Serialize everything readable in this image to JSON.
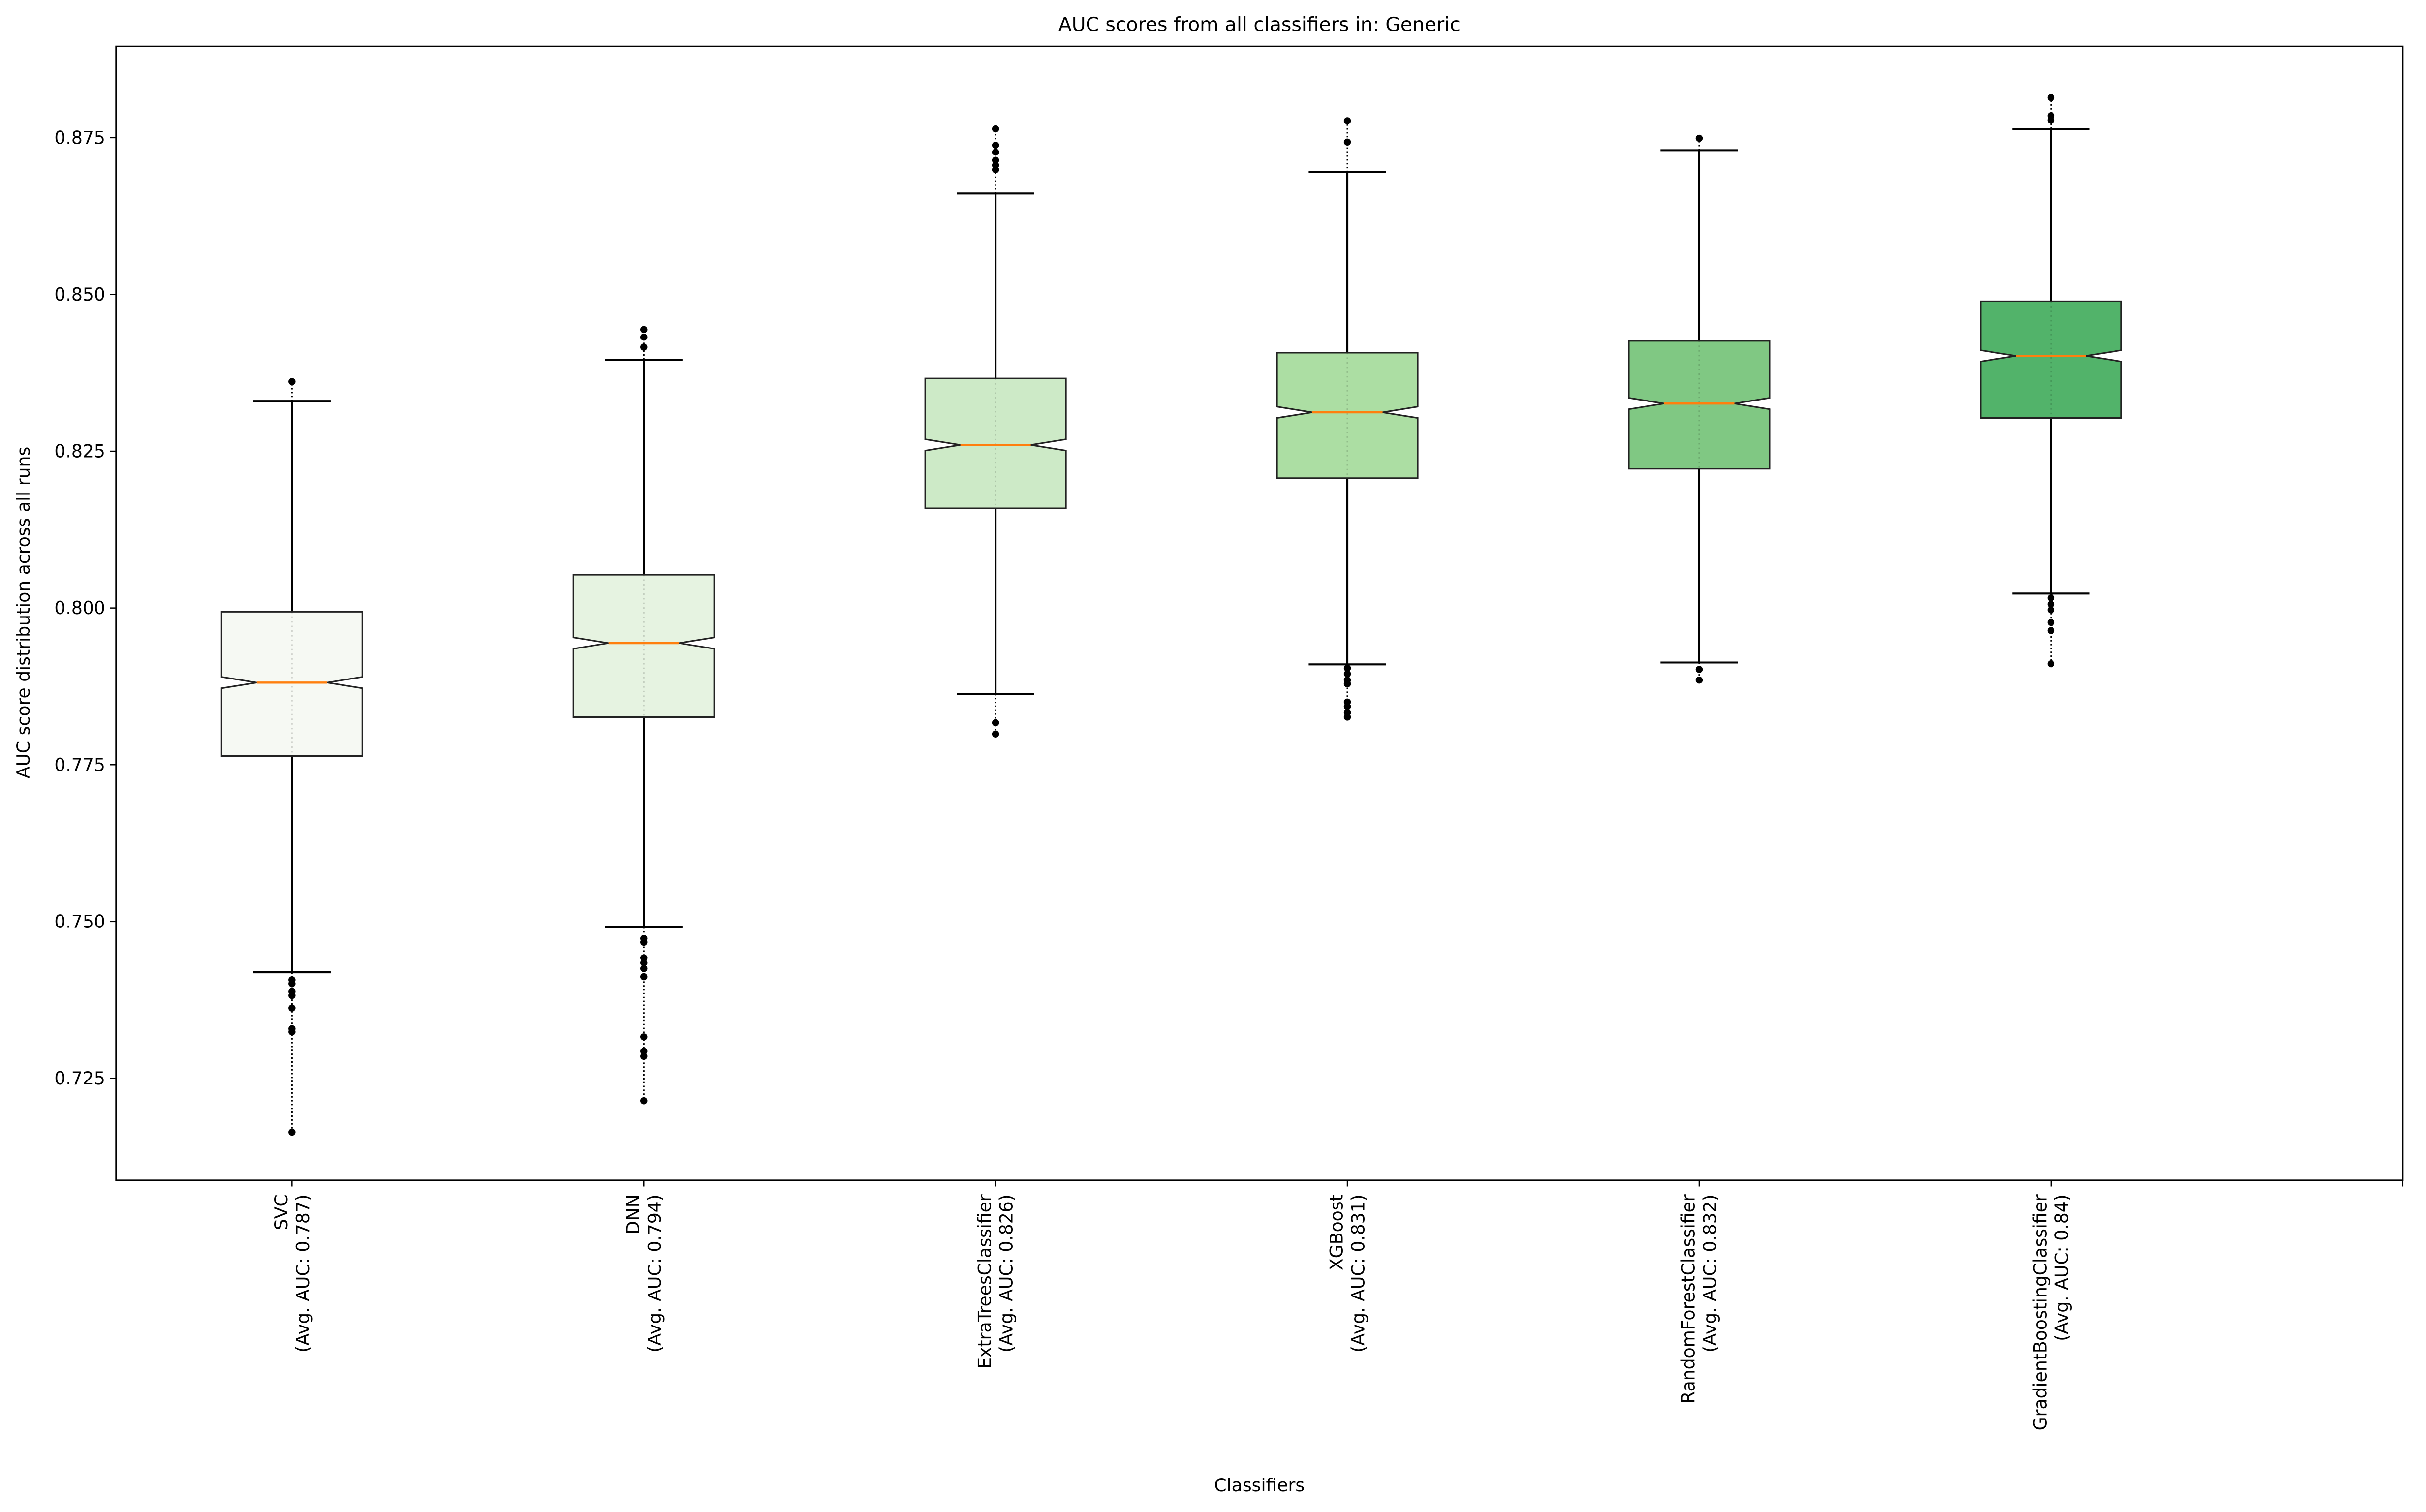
{
  "chart_data": {
    "type": "boxplot",
    "title": "AUC scores from all classifiers in: Generic",
    "xlabel": "Classifiers",
    "ylabel": "AUC score distribution across all runs",
    "ylim": [
      0.708,
      0.889
    ],
    "xlim": [
      0.5,
      7
    ],
    "yticks": [
      0.725,
      0.75,
      0.775,
      0.8,
      0.825,
      0.85,
      0.875
    ],
    "ytick_labels": [
      "0.725",
      "0.750",
      "0.775",
      "0.800",
      "0.825",
      "0.850",
      "0.875"
    ],
    "xticks": [
      1,
      2,
      3,
      4,
      5,
      6,
      7
    ],
    "median_color": "#ff7f0e",
    "boxes": [
      {
        "name": "SVC",
        "avg_label": "(Avg. AUC: 0.787)",
        "color": "#f6f9f3",
        "whisker_low": 0.7419,
        "q1": 0.7764,
        "median": 0.7881,
        "q3": 0.7994,
        "whisker_high": 0.833,
        "notch_low": 0.7872,
        "notch_high": 0.789,
        "outliers": [
          0.8361,
          0.7407,
          0.7401,
          0.7388,
          0.7382,
          0.7362,
          0.7329,
          0.7324,
          0.7164
        ]
      },
      {
        "name": "DNN",
        "avg_label": "(Avg. AUC: 0.794)",
        "color": "#e6f3e1",
        "whisker_low": 0.7491,
        "q1": 0.7826,
        "median": 0.7944,
        "q3": 0.8053,
        "whisker_high": 0.8396,
        "notch_low": 0.7935,
        "notch_high": 0.7953,
        "outliers": [
          0.8444,
          0.8432,
          0.8416,
          0.7473,
          0.7467,
          0.7442,
          0.7434,
          0.7425,
          0.7412,
          0.7316,
          0.7293,
          0.7285,
          0.7214
        ]
      },
      {
        "name": "ExtraTreesClassifier",
        "avg_label": "(Avg. AUC: 0.826)",
        "color": "#cdeac7",
        "whisker_low": 0.7863,
        "q1": 0.8159,
        "median": 0.826,
        "q3": 0.8366,
        "whisker_high": 0.8661,
        "notch_low": 0.8251,
        "notch_high": 0.8269,
        "outliers": [
          0.8764,
          0.8738,
          0.8727,
          0.8714,
          0.8706,
          0.8699,
          0.7817,
          0.7799
        ]
      },
      {
        "name": "XGBoost",
        "avg_label": "(Avg. AUC: 0.831)",
        "color": "#acdea3",
        "whisker_low": 0.791,
        "q1": 0.8207,
        "median": 0.8312,
        "q3": 0.8407,
        "whisker_high": 0.8695,
        "notch_low": 0.8303,
        "notch_high": 0.8321,
        "outliers": [
          0.8777,
          0.8743,
          0.7904,
          0.7895,
          0.7885,
          0.7879,
          0.785,
          0.7843,
          0.7833,
          0.7826
        ]
      },
      {
        "name": "RandomForestClassifier",
        "avg_label": "(Avg. AUC: 0.832)",
        "color": "#80c883",
        "whisker_low": 0.7913,
        "q1": 0.8222,
        "median": 0.8326,
        "q3": 0.8426,
        "whisker_high": 0.873,
        "notch_low": 0.8317,
        "notch_high": 0.8335,
        "outliers": [
          0.8749,
          0.7902,
          0.7885
        ]
      },
      {
        "name": "GradientBoostingClassifier",
        "avg_label": "(Avg. AUC: 0.84)",
        "color": "#52b36a",
        "whisker_low": 0.8023,
        "q1": 0.8303,
        "median": 0.8402,
        "q3": 0.8489,
        "whisker_high": 0.8764,
        "notch_low": 0.8393,
        "notch_high": 0.8411,
        "outliers": [
          0.8814,
          0.8785,
          0.8778,
          0.8016,
          0.8006,
          0.7997,
          0.7977,
          0.7964,
          0.7911
        ]
      }
    ]
  }
}
